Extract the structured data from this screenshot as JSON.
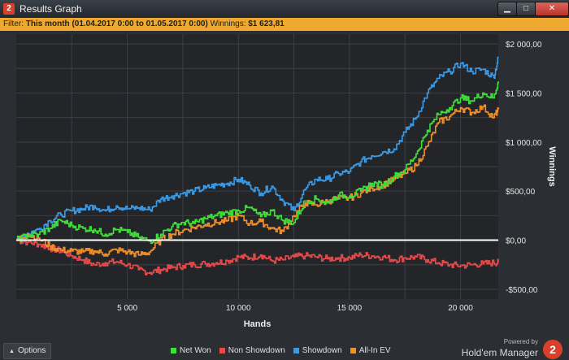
{
  "window": {
    "title": "Results Graph",
    "app_badge": "2",
    "minimize_label": "▁",
    "maximize_label": "□",
    "close_label": "✕"
  },
  "filter": {
    "prefix": "Filter:",
    "range_label": "This month (01.04.2017 0:00 to 01.05.2017 0:00)",
    "winnings_prefix": "Winnings:",
    "winnings_value": "$1 623,81"
  },
  "footer": {
    "options_label": "Options",
    "powered_by": "Powered by",
    "brand": "Hold'em Manager",
    "brand_badge": "2"
  },
  "colors": {
    "net_won": "#3fe03a",
    "non_showdown": "#e84a4a",
    "showdown": "#3a9be8",
    "all_in_ev": "#f0902a",
    "zero_line": "#ffffff",
    "grid": "#3c4046",
    "plot_bg": "#232529"
  },
  "chart_data": {
    "type": "line",
    "xlabel": "Hands",
    "ylabel": "Winnings",
    "xlim": [
      0,
      21700
    ],
    "ylim": [
      -600,
      2100
    ],
    "x_ticks": [
      {
        "value": 5000,
        "label": "5 000"
      },
      {
        "value": 10000,
        "label": "10 000"
      },
      {
        "value": 15000,
        "label": "15 000"
      },
      {
        "value": 20000,
        "label": "20 000"
      }
    ],
    "y_ticks": [
      {
        "value": 2000,
        "label": "$2 000,00"
      },
      {
        "value": 1500,
        "label": "$1 500,00"
      },
      {
        "value": 1000,
        "label": "$1 000,00"
      },
      {
        "value": 500,
        "label": "$500,00"
      },
      {
        "value": 0,
        "label": "$0,00"
      },
      {
        "value": -500,
        "label": "-$500,00"
      }
    ],
    "grid": true,
    "legend_position": "bottom-center",
    "series": [
      {
        "name": "Net Won",
        "color_key": "net_won",
        "x": [
          0,
          500,
          1000,
          1500,
          2000,
          2500,
          3000,
          3500,
          4000,
          4500,
          5000,
          5500,
          6000,
          6500,
          7000,
          7500,
          8000,
          8500,
          9000,
          9500,
          10000,
          10500,
          11000,
          11500,
          12000,
          12500,
          13000,
          13500,
          14000,
          14500,
          15000,
          15500,
          16000,
          16500,
          17000,
          17500,
          18000,
          18500,
          19000,
          19500,
          20000,
          20500,
          21000,
          21500,
          21700
        ],
        "values": [
          0,
          50,
          60,
          120,
          200,
          150,
          120,
          110,
          60,
          110,
          80,
          30,
          -10,
          60,
          140,
          180,
          170,
          220,
          250,
          280,
          300,
          330,
          240,
          300,
          200,
          180,
          400,
          420,
          380,
          460,
          450,
          500,
          580,
          560,
          650,
          720,
          880,
          1120,
          1280,
          1350,
          1450,
          1420,
          1500,
          1450,
          1620
        ]
      },
      {
        "name": "Non Showdown",
        "color_key": "non_showdown",
        "x": [
          0,
          500,
          1000,
          1500,
          2000,
          2500,
          3000,
          3500,
          4000,
          4500,
          5000,
          5500,
          6000,
          6500,
          7000,
          7500,
          8000,
          8500,
          9000,
          9500,
          10000,
          10500,
          11000,
          11500,
          12000,
          12500,
          13000,
          13500,
          14000,
          14500,
          15000,
          15500,
          16000,
          16500,
          17000,
          17500,
          18000,
          18500,
          19000,
          19500,
          20000,
          20500,
          21000,
          21500,
          21700
        ],
        "values": [
          0,
          -20,
          -40,
          -80,
          -110,
          -160,
          -200,
          -250,
          -230,
          -220,
          -250,
          -300,
          -330,
          -300,
          -280,
          -260,
          -250,
          -240,
          -230,
          -210,
          -170,
          -180,
          -150,
          -210,
          -200,
          -170,
          -160,
          -170,
          -190,
          -180,
          -180,
          -150,
          -160,
          -170,
          -200,
          -180,
          -170,
          -200,
          -230,
          -250,
          -260,
          -250,
          -240,
          -230,
          -230
        ]
      },
      {
        "name": "Showdown",
        "color_key": "showdown",
        "x": [
          0,
          500,
          1000,
          1500,
          2000,
          2500,
          3000,
          3500,
          4000,
          4500,
          5000,
          5500,
          6000,
          6500,
          7000,
          7500,
          8000,
          8500,
          9000,
          9500,
          10000,
          10500,
          11000,
          11500,
          12000,
          12500,
          13000,
          13500,
          14000,
          14500,
          15000,
          15500,
          16000,
          16500,
          17000,
          17500,
          18000,
          18500,
          19000,
          19500,
          20000,
          20500,
          21000,
          21500,
          21700
        ],
        "values": [
          0,
          70,
          110,
          200,
          260,
          300,
          320,
          350,
          300,
          350,
          320,
          330,
          310,
          420,
          450,
          480,
          500,
          530,
          560,
          580,
          620,
          560,
          480,
          550,
          400,
          300,
          520,
          620,
          620,
          680,
          700,
          800,
          860,
          900,
          930,
          1100,
          1250,
          1500,
          1650,
          1720,
          1800,
          1720,
          1740,
          1660,
          1860
        ]
      },
      {
        "name": "All-In EV",
        "color_key": "all_in_ev",
        "x": [
          0,
          500,
          1000,
          1500,
          2000,
          2500,
          3000,
          3500,
          4000,
          4500,
          5000,
          5500,
          6000,
          6500,
          7000,
          7500,
          8000,
          8500,
          9000,
          9500,
          10000,
          10500,
          11000,
          11500,
          12000,
          12500,
          13000,
          13500,
          14000,
          14500,
          15000,
          15500,
          16000,
          16500,
          17000,
          17500,
          18000,
          18500,
          19000,
          19500,
          20000,
          20500,
          21000,
          21500,
          21700
        ],
        "values": [
          0,
          60,
          20,
          -60,
          -100,
          -110,
          -120,
          -110,
          -140,
          -100,
          -120,
          -150,
          -120,
          0,
          60,
          100,
          130,
          160,
          180,
          200,
          250,
          170,
          190,
          120,
          90,
          250,
          380,
          360,
          400,
          420,
          430,
          480,
          530,
          560,
          620,
          680,
          760,
          960,
          1200,
          1260,
          1350,
          1300,
          1360,
          1250,
          1330
        ]
      }
    ]
  }
}
